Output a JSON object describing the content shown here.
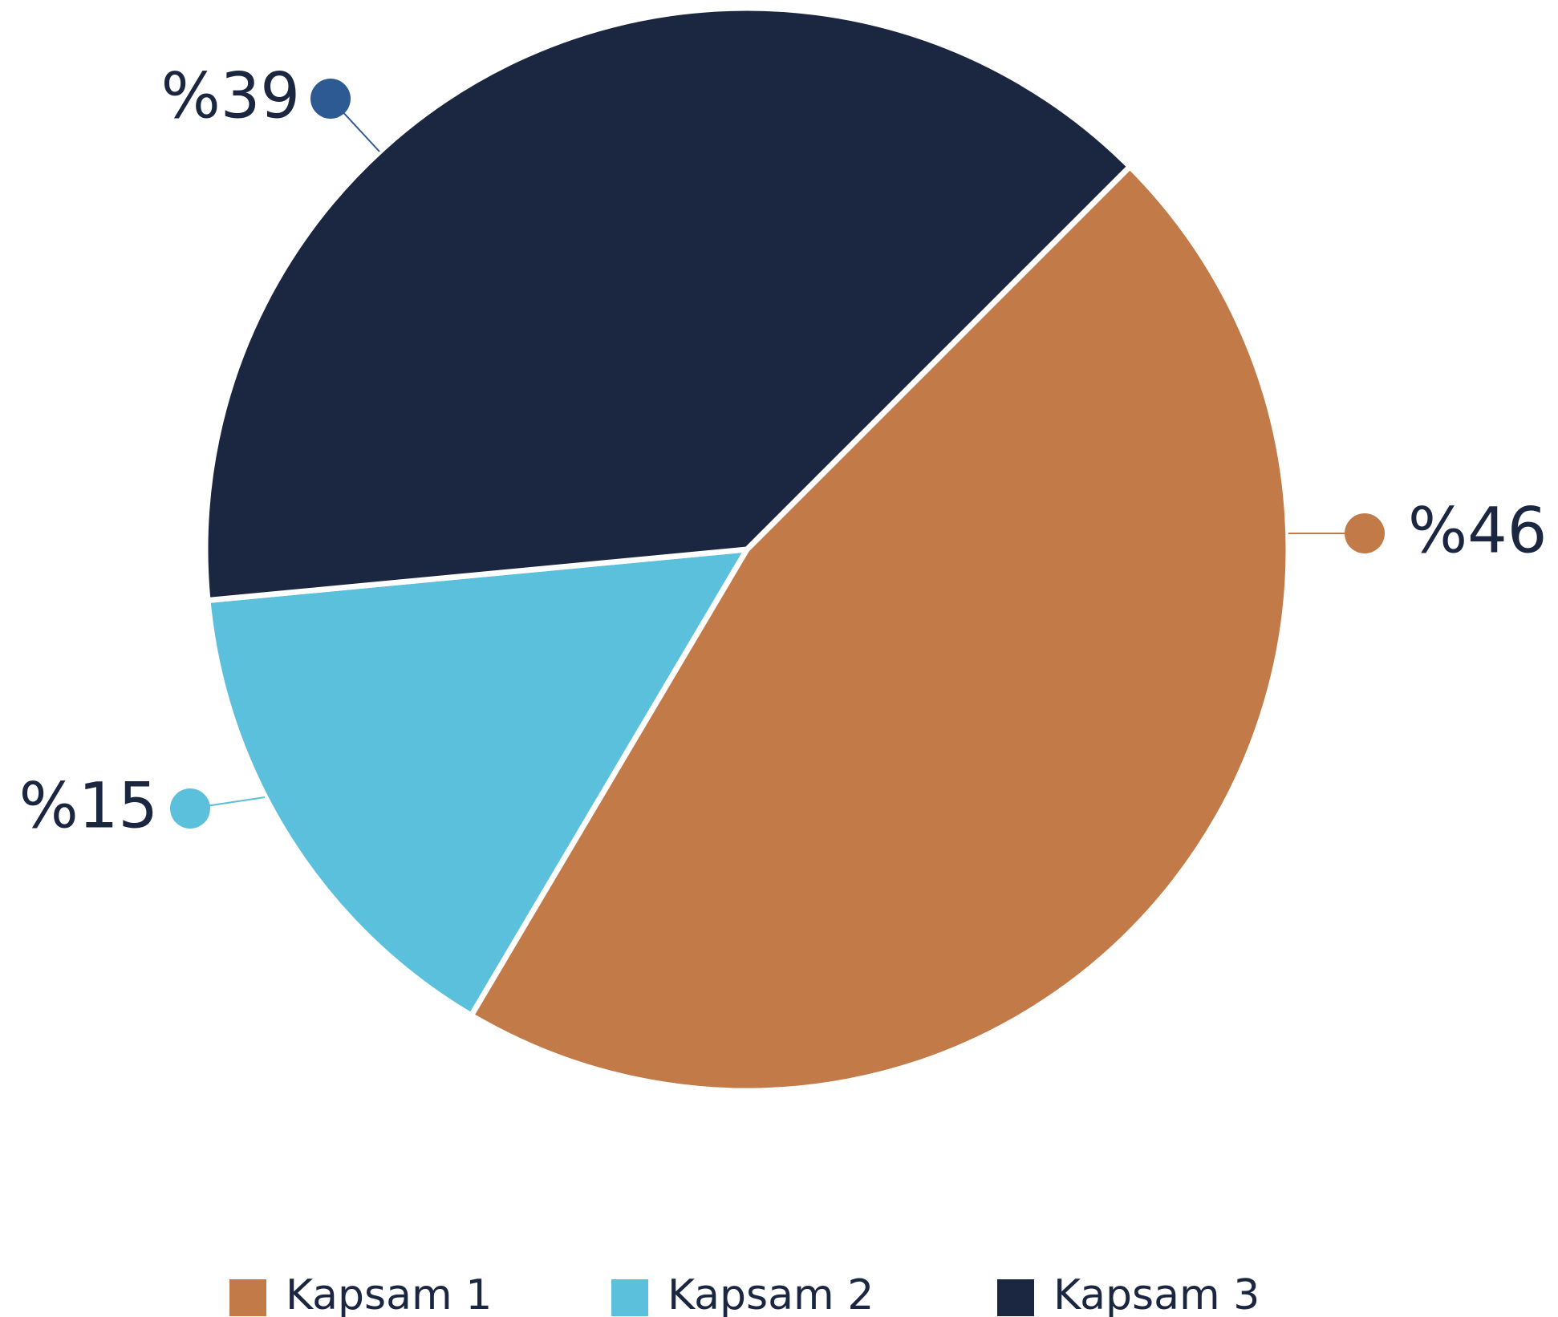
{
  "chart_data": {
    "type": "pie",
    "categories": [
      "Kapsam 1",
      "Kapsam 2",
      "Kapsam 3"
    ],
    "values": [
      46,
      15,
      39
    ],
    "value_labels": [
      "%46",
      "%15",
      "%39"
    ],
    "colors": [
      "#c27b48",
      "#5bc0dc",
      "#1b2640"
    ],
    "legend": "bottom"
  }
}
